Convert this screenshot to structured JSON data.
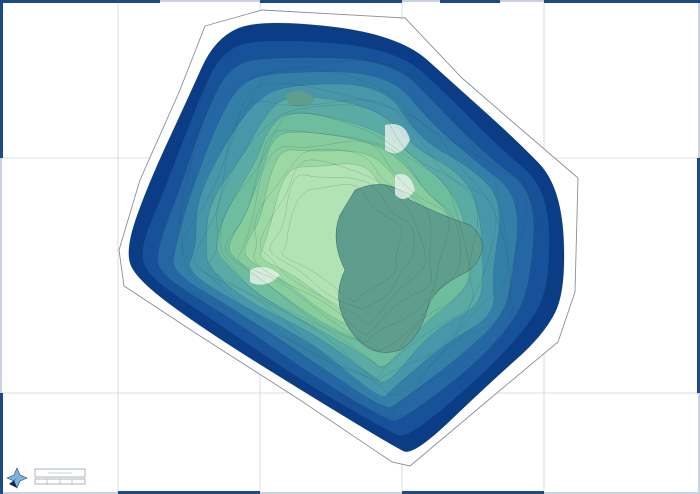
{
  "map": {
    "type": "contour-depth-map",
    "frame_color": "#1d4a86",
    "grid_color": "#d0d4da",
    "outline_color": "#8a8f96",
    "contour_line_color": "#2c4a5a",
    "depth_colors": [
      "#0b3c86",
      "#17519a",
      "#2467a4",
      "#347fa8",
      "#4796aa",
      "#5aaaa6",
      "#6fbd9f",
      "#86cc9c",
      "#9bd8a2",
      "#b2e3b4"
    ],
    "basin_color": "#5f9e8c",
    "highlight_color": "#e8f4ec"
  },
  "legend": {
    "north_arrow": "north-arrow-icon",
    "scale_bar": true
  }
}
